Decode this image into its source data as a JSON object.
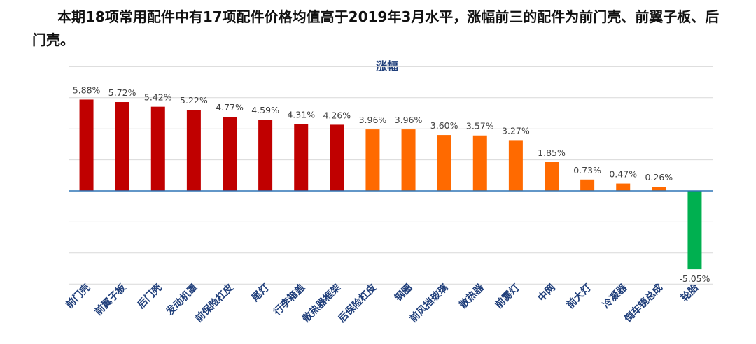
{
  "headline": "本期18项常用配件中有17项配件价格均值高于2019年3月水平，涨幅前三的配件为前门壳、前翼子板、后门壳。",
  "chart_data": {
    "type": "bar",
    "title": "涨幅",
    "categories": [
      "前门壳",
      "前翼子板",
      "后门壳",
      "发动机罩",
      "前保险杠皮",
      "尾灯",
      "行李箱盖",
      "散热器框架",
      "后保险杠皮",
      "钢圈",
      "前风挡玻璃",
      "散热器",
      "前雾灯",
      "中网",
      "前大灯",
      "冷凝器",
      "倒车镜总成",
      "轮胎"
    ],
    "values": [
      5.88,
      5.72,
      5.42,
      5.22,
      4.77,
      4.59,
      4.31,
      4.26,
      3.96,
      3.96,
      3.6,
      3.57,
      3.27,
      1.85,
      0.73,
      0.47,
      0.26,
      -5.05
    ],
    "value_labels": [
      "5.88%",
      "5.72%",
      "5.42%",
      "5.22%",
      "4.77%",
      "4.59%",
      "4.31%",
      "4.26%",
      "3.96%",
      "3.96%",
      "3.60%",
      "3.57%",
      "3.27%",
      "1.85%",
      "0.73%",
      "0.47%",
      "0.26%",
      "-5.05%"
    ],
    "ylim": [
      -6,
      8
    ],
    "grid": true,
    "colors": {
      "top": "#c00000",
      "mid": "#ff6a00",
      "negative": "#00b050",
      "axis": "#2e75b6",
      "grid": "#d9d9d9"
    },
    "color_groups": [
      "top",
      "top",
      "top",
      "top",
      "top",
      "top",
      "top",
      "top",
      "mid",
      "mid",
      "mid",
      "mid",
      "mid",
      "mid",
      "mid",
      "mid",
      "mid",
      "negative"
    ]
  }
}
